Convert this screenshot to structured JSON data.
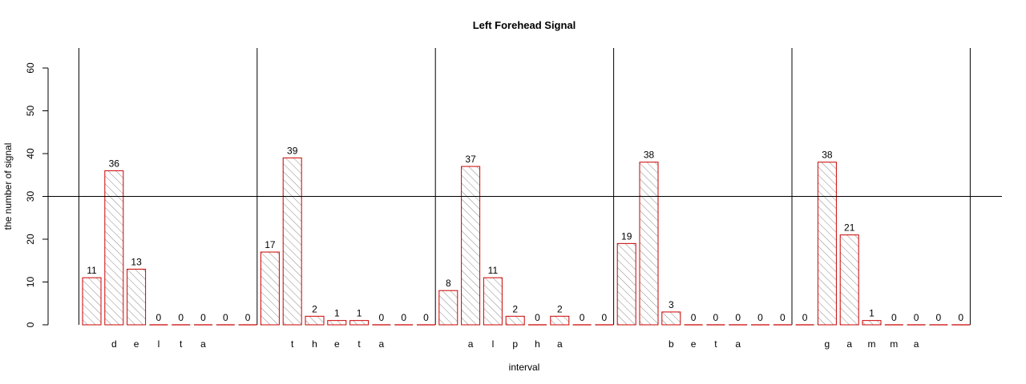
{
  "chart_data": {
    "type": "bar",
    "title": "Left Forehead Signal",
    "xlabel": "interval",
    "ylabel": "the number of signal",
    "ylim": [
      0,
      65
    ],
    "yticks": [
      0,
      10,
      20,
      30,
      40,
      50,
      60
    ],
    "reference_line_y": 30,
    "colors": {
      "bar_border": "#cc0000",
      "hatch": "#888888",
      "axis": "#000000"
    },
    "values": [
      11,
      36,
      13,
      0,
      0,
      0,
      0,
      0,
      17,
      39,
      2,
      1,
      1,
      0,
      0,
      0,
      8,
      37,
      11,
      2,
      0,
      2,
      0,
      0,
      19,
      38,
      3,
      0,
      0,
      0,
      0,
      0,
      0,
      38,
      21,
      1,
      0,
      0,
      0,
      0
    ],
    "category_letters": [
      "",
      "d",
      "e",
      "l",
      "t",
      "a",
      "",
      "",
      "",
      "t",
      "h",
      "e",
      "t",
      "a",
      "",
      "",
      "",
      "a",
      "l",
      "p",
      "h",
      "a",
      "",
      "",
      "",
      "",
      "b",
      "e",
      "t",
      "a",
      "",
      "",
      "",
      "g",
      "a",
      "m",
      "m",
      "a",
      "",
      ""
    ]
  }
}
